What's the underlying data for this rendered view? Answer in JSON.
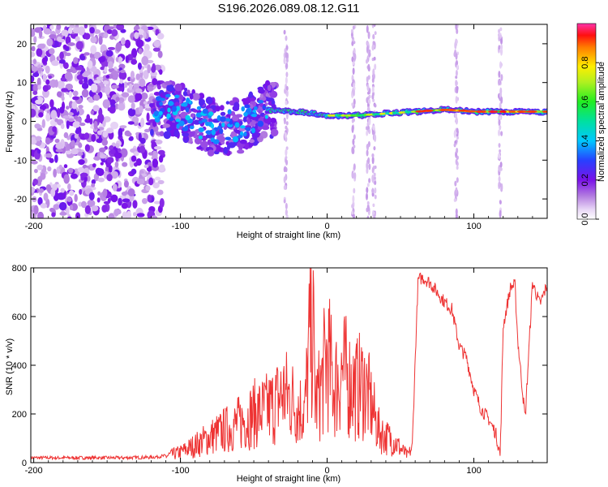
{
  "title": "S196.2026.089.08.12.G11",
  "chart_data": [
    {
      "type": "heatmap",
      "title": "S196.2026.089.08.12.G11",
      "xlabel": "Height of straight line (km)",
      "ylabel": "Frequency (Hz)",
      "xlim": [
        -202,
        150
      ],
      "ylim": [
        -25,
        25
      ],
      "xticks": [
        -200,
        -100,
        0,
        100
      ],
      "yticks": [
        -20,
        -10,
        0,
        10,
        20
      ],
      "colorbar": {
        "label": "Normalized spectral amplitude",
        "range": [
          0,
          1
        ],
        "ticks": [
          0.0,
          0.2,
          0.4,
          0.6,
          0.8
        ]
      },
      "ridge": [
        {
          "x": -120,
          "freq": 3.5
        },
        {
          "x": -100,
          "freq": 2.5
        },
        {
          "x": -80,
          "freq": -1.5
        },
        {
          "x": -60,
          "freq": -1.0
        },
        {
          "x": -40,
          "freq": 3.0
        },
        {
          "x": -20,
          "freq": 2.5
        },
        {
          "x": 0,
          "freq": 1.5
        },
        {
          "x": 20,
          "freq": 1.5
        },
        {
          "x": 40,
          "freq": 2.0
        },
        {
          "x": 60,
          "freq": 2.5
        },
        {
          "x": 80,
          "freq": 3.0
        },
        {
          "x": 100,
          "freq": 2.5
        },
        {
          "x": 120,
          "freq": 2.5
        },
        {
          "x": 150,
          "freq": 2.5
        }
      ]
    },
    {
      "type": "line",
      "xlabel": "Height of straight line (km)",
      "ylabel": "SNR (10 * v/v)",
      "xlim": [
        -202,
        150
      ],
      "ylim": [
        0,
        800
      ],
      "xticks": [
        -200,
        -100,
        0,
        100
      ],
      "yticks": [
        0,
        200,
        400,
        600,
        800
      ],
      "series": [
        {
          "name": "SNR",
          "color": "#ee3333",
          "x": [
            -202,
            -180,
            -160,
            -140,
            -120,
            -110,
            -100,
            -90,
            -80,
            -70,
            -60,
            -50,
            -40,
            -35,
            -30,
            -25,
            -20,
            -15,
            -12,
            -10,
            -8,
            -5,
            0,
            5,
            10,
            15,
            20,
            25,
            30,
            35,
            40,
            45,
            50,
            55,
            58,
            60,
            62,
            65,
            70,
            75,
            80,
            85,
            90,
            95,
            100,
            105,
            110,
            115,
            118,
            120,
            125,
            128,
            130,
            135,
            140,
            145,
            150
          ],
          "values": [
            20,
            20,
            20,
            20,
            22,
            28,
            45,
            75,
            110,
            140,
            170,
            210,
            230,
            260,
            300,
            280,
            240,
            230,
            520,
            640,
            260,
            300,
            460,
            330,
            400,
            350,
            320,
            340,
            250,
            140,
            110,
            100,
            60,
            30,
            60,
            420,
            750,
            760,
            740,
            700,
            660,
            630,
            480,
            430,
            300,
            220,
            180,
            120,
            30,
            560,
            720,
            730,
            500,
            180,
            740,
            650,
            730
          ]
        }
      ]
    }
  ]
}
